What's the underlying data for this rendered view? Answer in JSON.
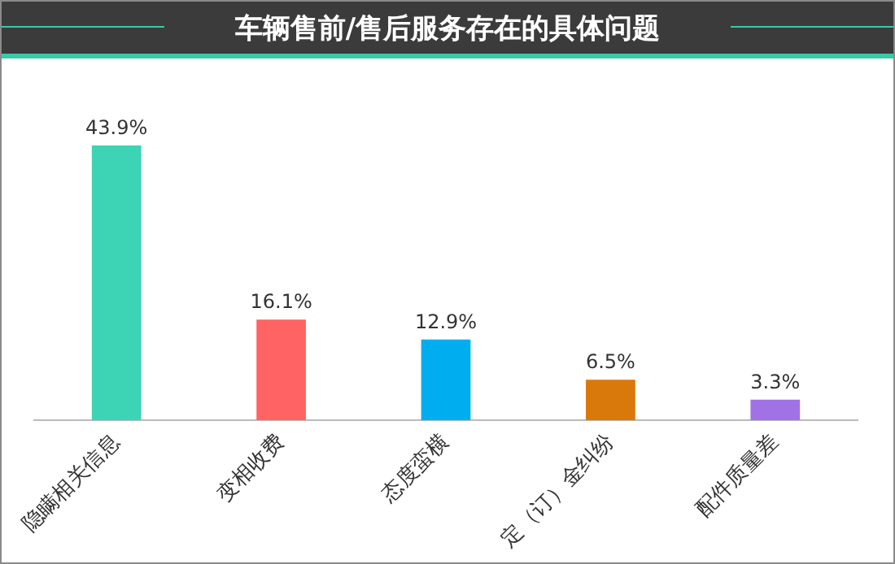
{
  "chart_data": {
    "type": "bar",
    "title": "车辆售前/售后服务存在的具体问题",
    "categories": [
      "隐瞒相关信息",
      "变相收费",
      "态度蛮横",
      "定（订）金纠纷",
      "配件质量差"
    ],
    "values": [
      43.9,
      16.1,
      12.9,
      6.5,
      3.3
    ],
    "value_labels": [
      "43.9%",
      "16.1%",
      "12.9%",
      "6.5%",
      "3.3%"
    ],
    "colors": [
      "#3cd4b4",
      "#ff6363",
      "#00aeef",
      "#d9780b",
      "#a072e6"
    ],
    "grid": false,
    "legend": false
  }
}
